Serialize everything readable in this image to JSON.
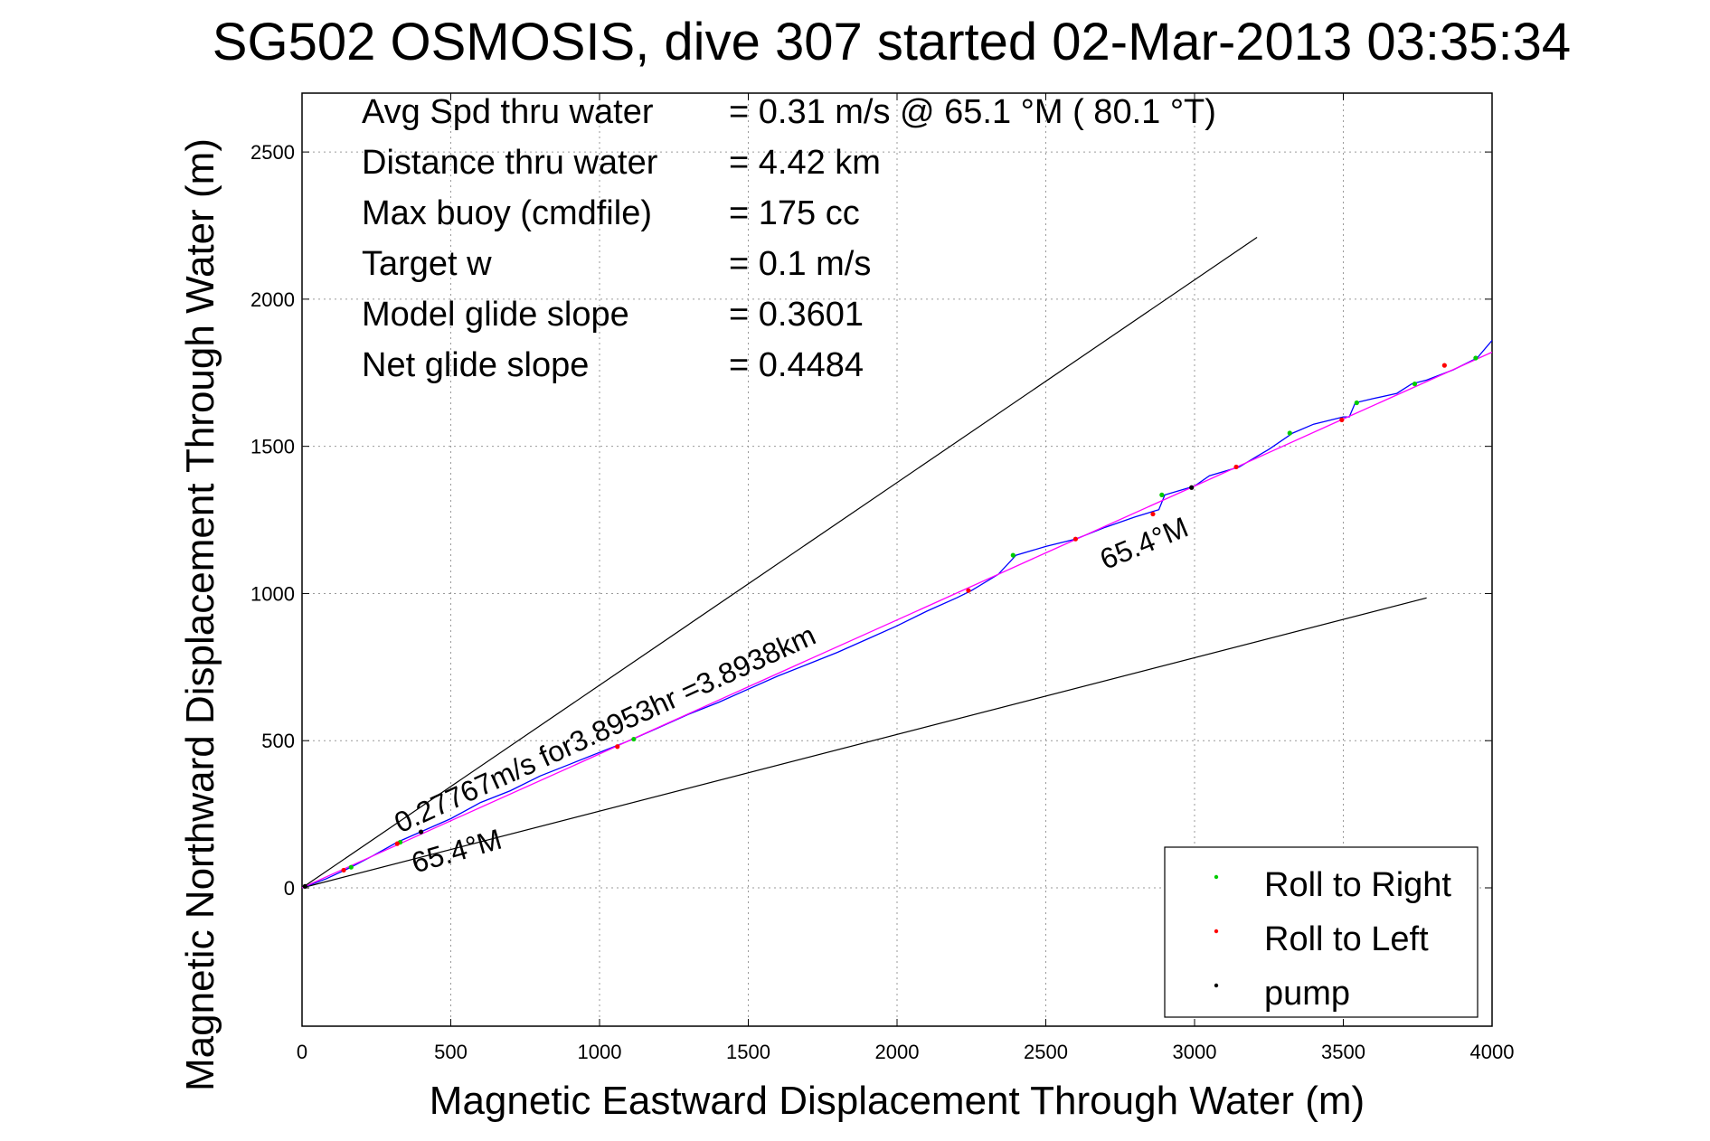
{
  "chart_data": {
    "type": "line",
    "title": "SG502 OSMOSIS, dive 307 started 02-Mar-2013 03:35:34",
    "xlabel": "Magnetic Eastward Displacement Through Water (m)",
    "ylabel": "Magnetic Northward Displacement Through Water (m)",
    "xlim": [
      0,
      4000
    ],
    "ylim": [
      -470,
      2700
    ],
    "xticks": [
      0,
      500,
      1000,
      1500,
      2000,
      2500,
      3000,
      3500,
      4000
    ],
    "yticks": [
      0,
      500,
      1000,
      1500,
      2000,
      2500
    ],
    "grid": true,
    "legend_position": "bottom-right",
    "stats": [
      {
        "label": "Avg Spd thru water",
        "value": "=  0.31 m/s @  65.1 °M ( 80.1 °T)"
      },
      {
        "label": "Distance thru water",
        "value": "=  4.42 km"
      },
      {
        "label": "Max buoy (cmdfile)",
        "value": "= 175 cc"
      },
      {
        "label": "Target w",
        "value": "= 0.1 m/s"
      },
      {
        "label": "Model glide slope",
        "value": "= 0.3601"
      },
      {
        "label": "Net glide slope",
        "value": "= 0.4484"
      }
    ],
    "annotations": [
      {
        "text": "0.27767m/s for3.8953hr =3.8938km",
        "x": 330,
        "y": 185,
        "angle_deg": 24.6
      },
      {
        "text": "65.4°M",
        "x": 380,
        "y": 50,
        "angle_deg": 16.0
      },
      {
        "text": "65.4°M",
        "x": 2700,
        "y": 1080,
        "angle_deg": 22.5
      }
    ],
    "reference_lines": [
      {
        "name": "upper-bound",
        "x": [
          0,
          3210
        ],
        "y": [
          0,
          2210
        ]
      },
      {
        "name": "lower-bound",
        "x": [
          0,
          3780
        ],
        "y": [
          0,
          985
        ]
      }
    ],
    "series": [
      {
        "color": "#0000ff",
        "x": [
          0,
          80,
          160,
          240,
          320,
          410,
          500,
          600,
          700,
          800,
          900,
          1000,
          1100,
          1200,
          1300,
          1400,
          1500,
          1600,
          1700,
          1800,
          1900,
          2000,
          2100,
          2200,
          2250,
          2340,
          2400,
          2500,
          2600,
          2700,
          2800,
          2880,
          2900,
          3000,
          3050,
          3150,
          3250,
          3330,
          3400,
          3500,
          3520,
          3540,
          3600,
          3680,
          3730,
          3780,
          3870,
          3950,
          4000
        ],
        "y": [
          0,
          30,
          68,
          110,
          155,
          195,
          235,
          290,
          330,
          380,
          420,
          460,
          500,
          545,
          590,
          630,
          675,
          720,
          760,
          800,
          845,
          890,
          940,
          985,
          1010,
          1065,
          1130,
          1160,
          1185,
          1225,
          1260,
          1285,
          1335,
          1365,
          1400,
          1430,
          1490,
          1545,
          1575,
          1600,
          1600,
          1648,
          1662,
          1680,
          1712,
          1725,
          1760,
          1800,
          1860
        ]
      },
      {
        "color": "#ff00ff",
        "x": [
          0,
          500,
          1000,
          1500,
          2000,
          2500,
          3000,
          3500,
          4000
        ],
        "y": [
          0,
          228,
          455,
          683,
          910,
          1138,
          1365,
          1593,
          1820
        ]
      }
    ],
    "markers": [
      {
        "name": "Roll to Right",
        "color": "#00cc00",
        "points": [
          [
            165,
            70
          ],
          [
            330,
            155
          ],
          [
            1115,
            505
          ],
          [
            2390,
            1130
          ],
          [
            2890,
            1335
          ],
          [
            3320,
            1545
          ],
          [
            3545,
            1648
          ],
          [
            3740,
            1712
          ],
          [
            3945,
            1800
          ]
        ]
      },
      {
        "name": "Roll to Left",
        "color": "#ff0000",
        "points": [
          [
            140,
            60
          ],
          [
            320,
            150
          ],
          [
            1060,
            480
          ],
          [
            2240,
            1010
          ],
          [
            2600,
            1185
          ],
          [
            2860,
            1270
          ],
          [
            3140,
            1430
          ],
          [
            3495,
            1590
          ],
          [
            3840,
            1775
          ]
        ]
      },
      {
        "name": "pump",
        "color": "#000000",
        "points": [
          [
            10,
            5
          ],
          [
            400,
            190
          ],
          [
            2990,
            1360
          ]
        ]
      }
    ],
    "legend": {
      "entries": [
        {
          "label": "Roll to Right",
          "color": "#00cc00"
        },
        {
          "label": "Roll to Left",
          "color": "#ff0000"
        },
        {
          "label": "pump",
          "color": "#000000"
        }
      ]
    }
  }
}
